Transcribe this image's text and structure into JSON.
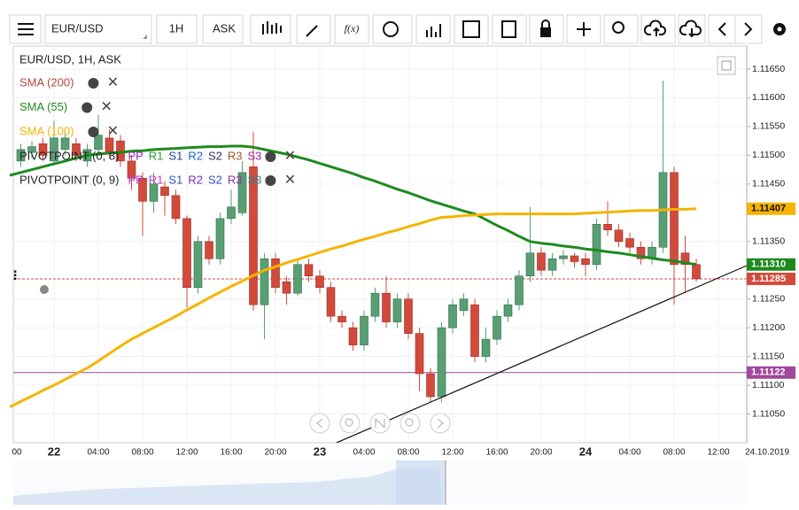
{
  "toolbar": {
    "symbol": "EUR/USD",
    "interval": "1H",
    "price_type": "ASK",
    "function_button": "f(x)"
  },
  "legend": {
    "title": "EUR/USD, 1H, ASK",
    "indicators": [
      {
        "name": "SMA (200)",
        "color": "#b5473a"
      }
    ],
    "pivots": [
      {
        "name": "PIVOTPOINT (0, 8)",
        "levels": [
          {
            "label": "PP",
            "color": "#9c27b0"
          },
          {
            "label": "R1",
            "color": "#2e9e3e"
          },
          {
            "label": "S1",
            "color": "#1f3f8f"
          },
          {
            "label": "R2",
            "color": "#1e63c9"
          },
          {
            "label": "S2",
            "color": "#333366"
          },
          {
            "label": "R3",
            "color": "#9c5a2a"
          },
          {
            "label": "S3",
            "color": "#9c27b0"
          }
        ]
      },
      {
        "name": "PIVOTPOINT (0, 9)",
        "levels": [
          {
            "label": "PP",
            "color": "#b03ad0"
          },
          {
            "label": "R1",
            "color": "#c23fc2"
          },
          {
            "label": "S1",
            "color": "#2f55c9"
          },
          {
            "label": "R2",
            "color": "#7b2fbf"
          },
          {
            "label": "S2",
            "color": "#2f55c9"
          },
          {
            "label": "R3",
            "color": "#8e2fa8"
          },
          {
            "label": "S3",
            "color": "#1f8a9a"
          }
        ]
      }
    ]
  },
  "chart_data": {
    "type": "candlestick",
    "categories": [
      "00",
      null,
      null,
      null,
      "22",
      null,
      null,
      null,
      "04:00",
      null,
      null,
      null,
      "08:00",
      null,
      null,
      null,
      "12:00",
      null,
      null,
      null,
      "16:00",
      null,
      null,
      null,
      "20:00",
      null,
      null,
      null,
      "23",
      null,
      null,
      null,
      "04:00",
      null,
      null,
      null,
      "08:00",
      null,
      null,
      null,
      "12:00",
      null,
      null,
      null,
      "16:00",
      null,
      null,
      null,
      "20:00",
      null,
      null,
      null,
      "24",
      null,
      null,
      null,
      "04:00",
      null,
      null,
      null,
      "08:00",
      null,
      null,
      null,
      "12:00"
    ],
    "open": [
      null,
      1.1149,
      1.11505,
      1.1152,
      1.1149,
      1.1151,
      1.1152,
      1.1149,
      1.1151,
      1.1153,
      1.11525,
      1.1149,
      1.1146,
      1.1142,
      1.11445,
      1.1143,
      1.1139,
      1.1127,
      1.1135,
      1.1132,
      1.1139,
      1.114,
      1.1148,
      1.1124,
      1.1132,
      1.1128,
      1.1126,
      1.1131,
      1.1129,
      1.1127,
      1.1122,
      1.112,
      1.1117,
      1.1122,
      1.1126,
      1.1121,
      1.1125,
      1.1119,
      1.1112,
      1.1108,
      1.112,
      1.1123,
      1.1124,
      1.1115,
      1.1118,
      1.1122,
      1.1124,
      1.1129,
      1.1133,
      1.113,
      1.1132,
      1.11325,
      1.1132,
      1.1131,
      1.1138,
      1.1137,
      1.11355,
      1.1134,
      1.1132,
      1.1134,
      1.1147,
      1.1133,
      1.1131,
      null,
      null
    ],
    "high": [
      null,
      1.1152,
      1.11525,
      1.1153,
      1.1156,
      1.1154,
      1.1153,
      1.1152,
      1.1157,
      1.11545,
      1.11535,
      1.115,
      1.1147,
      1.1147,
      1.11455,
      1.1144,
      1.11395,
      1.1136,
      1.1136,
      1.114,
      1.1144,
      1.1149,
      1.1154,
      1.1133,
      1.1133,
      1.1129,
      1.1132,
      1.1132,
      1.113,
      1.1128,
      1.1123,
      1.1121,
      1.1123,
      1.1127,
      1.1129,
      1.1126,
      1.1126,
      1.112,
      1.1113,
      1.1121,
      1.1125,
      1.1126,
      1.1125,
      1.112,
      1.1123,
      1.1125,
      1.113,
      1.1141,
      1.1134,
      1.1133,
      1.11335,
      1.1133,
      1.1133,
      1.1139,
      1.1142,
      1.1138,
      1.11365,
      1.1135,
      1.1135,
      1.1163,
      1.1148,
      1.1136,
      1.1132,
      null,
      null
    ],
    "low": [
      null,
      1.1148,
      1.11495,
      1.1149,
      1.11485,
      1.115,
      1.1149,
      1.1148,
      1.115,
      1.11495,
      1.1148,
      1.1144,
      1.1136,
      1.114,
      1.11395,
      1.1138,
      1.11235,
      1.1126,
      1.1131,
      1.1131,
      1.1138,
      1.11395,
      1.1123,
      1.1118,
      1.1126,
      1.1124,
      1.11255,
      1.1128,
      1.1126,
      1.1121,
      1.112,
      1.1116,
      1.1116,
      1.1121,
      1.112,
      1.112,
      1.1118,
      1.1109,
      1.1107,
      1.1107,
      1.1119,
      1.1122,
      1.1114,
      1.1114,
      1.1117,
      1.1121,
      1.1123,
      1.1128,
      1.1129,
      1.1129,
      1.1131,
      1.11305,
      1.1129,
      1.113,
      1.1136,
      1.1134,
      1.1133,
      1.1131,
      1.1131,
      1.1133,
      1.1124,
      1.1126,
      1.1128,
      null,
      null
    ],
    "close": [
      null,
      1.1151,
      1.11515,
      1.115,
      1.1153,
      1.1153,
      1.115,
      1.1151,
      1.11535,
      1.11505,
      1.1149,
      1.1146,
      1.1142,
      1.1145,
      1.1143,
      1.1139,
      1.1127,
      1.1135,
      1.1132,
      1.1139,
      1.1141,
      1.1147,
      1.1124,
      1.1132,
      1.1127,
      1.1126,
      1.1131,
      1.1129,
      1.1127,
      1.1122,
      1.1121,
      1.1117,
      1.1122,
      1.1126,
      1.1121,
      1.1125,
      1.1119,
      1.1112,
      1.1108,
      1.112,
      1.1124,
      1.1125,
      1.1115,
      1.1118,
      1.1122,
      1.1124,
      1.1129,
      1.1133,
      1.113,
      1.1132,
      1.11325,
      1.11315,
      1.1131,
      1.1138,
      1.1137,
      1.1135,
      1.1134,
      1.1132,
      1.1134,
      1.1147,
      1.1131,
      1.1131,
      1.11285,
      null,
      null
    ],
    "up_color": "#5a9e74",
    "down_color": "#d24a3c",
    "series": [
      {
        "name": "SMA (55)",
        "color": "#1e8a1e",
        "values": [
          1.11465,
          1.1147,
          1.11475,
          1.1148,
          1.11485,
          1.1149,
          1.11495,
          1.115,
          1.11502,
          1.11504,
          1.11505,
          1.11507,
          1.11508,
          1.1151,
          1.11511,
          1.11512,
          1.11513,
          1.11514,
          1.11515,
          1.11515,
          1.11516,
          1.11516,
          1.11514,
          1.1151,
          1.11506,
          1.11502,
          1.11497,
          1.11492,
          1.11486,
          1.1148,
          1.11474,
          1.11468,
          1.11461,
          1.11455,
          1.11448,
          1.11441,
          1.11435,
          1.11428,
          1.11421,
          1.11415,
          1.11409,
          1.11403,
          1.11398,
          1.11388,
          1.11378,
          1.11369,
          1.11359,
          1.1135,
          1.11347,
          1.11345,
          1.11342,
          1.1134,
          1.11337,
          1.11335,
          1.11332,
          1.1133,
          1.11327,
          1.11324,
          1.11321,
          1.11318,
          1.11316,
          1.11313,
          1.1131,
          null,
          null
        ]
      },
      {
        "name": "SMA (100)",
        "color": "#f5b400",
        "values": [
          1.11062,
          1.11072,
          1.11081,
          1.11091,
          1.111,
          1.1111,
          1.1112,
          1.1113,
          1.11142,
          1.11155,
          1.11168,
          1.1118,
          1.1119,
          1.112,
          1.1121,
          1.1122,
          1.11231,
          1.11241,
          1.11252,
          1.11262,
          1.11272,
          1.11281,
          1.11291,
          1.113,
          1.11306,
          1.11313,
          1.11319,
          1.11325,
          1.11331,
          1.11337,
          1.11342,
          1.11348,
          1.11354,
          1.11359,
          1.11365,
          1.1137,
          1.11376,
          1.11381,
          1.11387,
          1.11392,
          1.11393,
          1.11395,
          1.11396,
          1.11397,
          1.11398,
          1.11398,
          1.11398,
          1.11398,
          1.11398,
          1.11398,
          1.11398,
          1.11398,
          1.11399,
          1.114,
          1.11401,
          1.11402,
          1.11403,
          1.11404,
          1.11404,
          1.11405,
          1.11406,
          1.11406,
          1.11407,
          null,
          null
        ]
      }
    ],
    "price_markers": [
      {
        "value": 1.11407,
        "color": "#f5b400",
        "text_color": "#111",
        "line": null
      },
      {
        "value": 1.1131,
        "label": "1.11310",
        "color": "#1e8a1e",
        "text_color": "#fff",
        "line": null
      },
      {
        "value": 1.11285,
        "color": "#d24a3c",
        "text_color": "#fff",
        "line": "dashed"
      },
      {
        "value": 1.11122,
        "color": "#a0479e",
        "text_color": "#fff",
        "line": "solid"
      }
    ],
    "ylim": [
      1.11,
      1.1169
    ],
    "yticks": [
      {
        "value": 1.1165,
        "label": "1.11650"
      },
      {
        "value": 1.116,
        "label": "1.11600"
      },
      {
        "value": 1.1155,
        "label": "1.11550"
      },
      {
        "value": 1.115,
        "label": "1.11500"
      },
      {
        "value": 1.1145,
        "label": "1.11450"
      },
      {
        "value": 1.1135,
        "label": "1.11350"
      },
      {
        "value": 1.1125,
        "label": "1.11250"
      },
      {
        "value": 1.112,
        "label": "1.11200"
      },
      {
        "value": 1.1115,
        "label": "1.11150"
      },
      {
        "value": 1.111,
        "label": "1.11100"
      },
      {
        "value": 1.1105,
        "label": "1.11050"
      }
    ],
    "grid": true,
    "date_label": "24.10.2019"
  }
}
